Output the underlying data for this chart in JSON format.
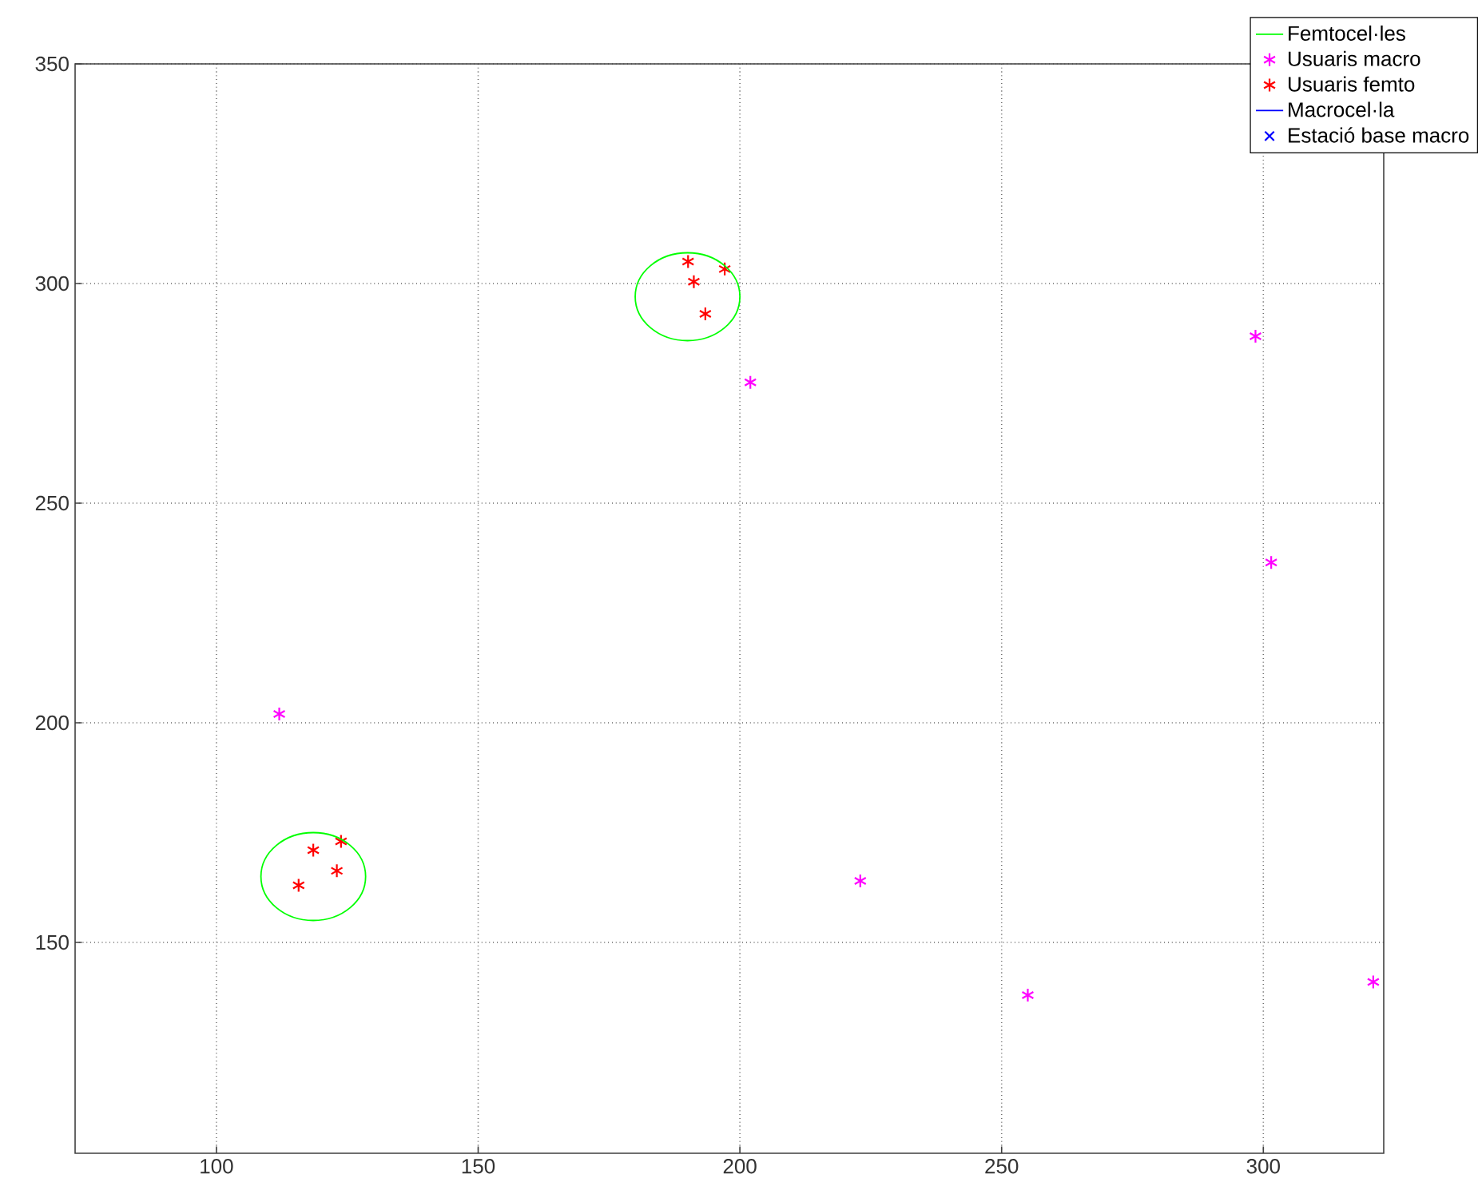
{
  "chart_data": {
    "type": "scatter",
    "xlim": [
      73,
      323
    ],
    "ylim": [
      102,
      350
    ],
    "xticks": [
      100,
      150,
      200,
      250,
      300
    ],
    "yticks": [
      150,
      200,
      250,
      300,
      350
    ],
    "grid": true,
    "legend": "top right",
    "series": [
      {
        "name": "Femtocel·les",
        "type": "line",
        "color": "#00ff00",
        "marker": "none"
      },
      {
        "name": "Usuaris macro",
        "color": "#ff00ff",
        "x": [
          112,
          202,
          223,
          255,
          321,
          298.5,
          301.5
        ],
        "values": [
          202,
          277.5,
          164,
          138,
          141,
          288,
          236.5
        ]
      },
      {
        "name": "Usuaris femto",
        "color": "#ff0000",
        "x": [
          115.7,
          118.5,
          123.8,
          123,
          190.1,
          197.1,
          191.2,
          193.4
        ],
        "values": [
          163,
          171,
          173,
          166.3,
          305,
          303.3,
          300.4,
          293.1
        ]
      },
      {
        "name": "Macrocel·la",
        "type": "line",
        "color": "#0000ff",
        "marker": "none"
      },
      {
        "name": "Estació base macro",
        "color": "#0000ff",
        "marker": "cross"
      }
    ]
  }
}
